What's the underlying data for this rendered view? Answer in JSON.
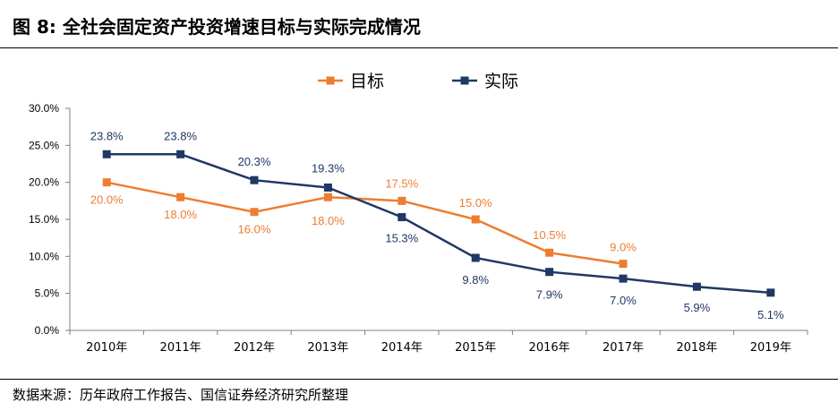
{
  "header": {
    "title": "图 8:  全社会固定资产投资增速目标与实际完成情况"
  },
  "footer": {
    "source": "数据来源：历年政府工作报告、国信证券经济研究所整理"
  },
  "chart_data": {
    "type": "line",
    "categories": [
      "2010年",
      "2011年",
      "2012年",
      "2013年",
      "2014年",
      "2015年",
      "2016年",
      "2017年",
      "2018年",
      "2019年"
    ],
    "y_ticks": [
      "0.0%",
      "5.0%",
      "10.0%",
      "15.0%",
      "20.0%",
      "25.0%",
      "30.0%"
    ],
    "ylim": [
      0,
      30
    ],
    "grid": false,
    "legend_position": "top-center",
    "series": [
      {
        "name": "目标",
        "color": "#ED7D31",
        "values": [
          20.0,
          18.0,
          16.0,
          18.0,
          17.5,
          15.0,
          10.5,
          9.0,
          null,
          null
        ],
        "labels": [
          "20.0%",
          "18.0%",
          "16.0%",
          "18.0%",
          "17.5%",
          "15.0%",
          "10.5%",
          "9.0%",
          null,
          null
        ]
      },
      {
        "name": "实际",
        "color": "#1F3864",
        "values": [
          23.8,
          23.8,
          20.3,
          19.3,
          15.3,
          9.8,
          7.9,
          7.0,
          5.9,
          5.1
        ],
        "labels": [
          "23.8%",
          "23.8%",
          "20.3%",
          "19.3%",
          "15.3%",
          "9.8%",
          "7.9%",
          "7.0%",
          "5.9%",
          "5.1%"
        ]
      }
    ]
  }
}
